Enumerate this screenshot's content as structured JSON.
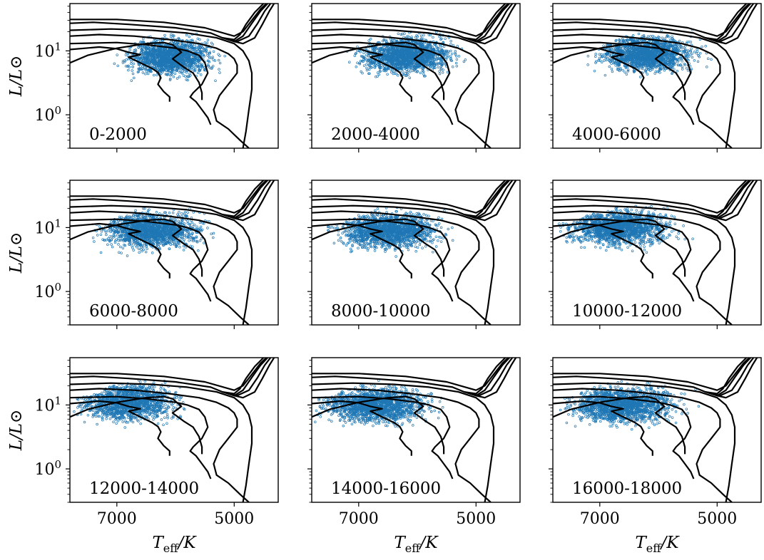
{
  "figure": {
    "ylabel": "L/L⊙",
    "xlabel": "T_eff/K"
  },
  "chart_data": {
    "type": "scatter",
    "layout": {
      "rows": 3,
      "cols": 3,
      "sharex": true,
      "sharey": true
    },
    "x_axis": {
      "label": "T_eff/K",
      "lim": [
        7800,
        4250
      ],
      "ticks": [
        7000,
        5000
      ],
      "tick_labels": [
        "7000",
        "5000"
      ]
    },
    "y_axis": {
      "label": "L/L⊙",
      "scale": "log",
      "lim": [
        0.3,
        55
      ],
      "ticks": [
        1,
        10
      ],
      "tick_labels": [
        "10^0",
        "10^1"
      ]
    },
    "grid": false,
    "point_color": "#1f77b4",
    "track_color": "#000000",
    "isochrone_tracks": [
      [
        [
          7800,
          6.5
        ],
        [
          7500,
          8.5
        ],
        [
          7000,
          11
        ],
        [
          6500,
          13
        ],
        [
          6200,
          13.5
        ],
        [
          6050,
          12.5
        ],
        [
          5900,
          9.5
        ],
        [
          6050,
          7.5
        ],
        [
          5850,
          5.5
        ],
        [
          5700,
          4.5
        ],
        [
          5600,
          3.2
        ],
        [
          5550,
          2.2
        ],
        [
          5550,
          1.7
        ]
      ],
      [
        [
          7800,
          10.5
        ],
        [
          7300,
          11.5
        ],
        [
          7000,
          10.8
        ],
        [
          6800,
          9.5
        ],
        [
          6600,
          8.7
        ],
        [
          6800,
          8.0
        ],
        [
          6600,
          6.5
        ],
        [
          6400,
          5.3
        ],
        [
          6300,
          4.6
        ],
        [
          6250,
          3.8
        ],
        [
          6300,
          3.0
        ],
        [
          6200,
          2.3
        ],
        [
          6100,
          1.9
        ],
        [
          6100,
          1.6
        ]
      ],
      [
        [
          7800,
          13
        ],
        [
          7000,
          13.5
        ],
        [
          6500,
          12.5
        ],
        [
          6000,
          11
        ],
        [
          5800,
          10
        ],
        [
          5600,
          8.5
        ],
        [
          5500,
          6.5
        ],
        [
          5450,
          4.5
        ],
        [
          5550,
          3.0
        ],
        [
          5700,
          2.2
        ],
        [
          5750,
          1.9
        ],
        [
          5650,
          1.6
        ],
        [
          5550,
          1.2
        ],
        [
          5450,
          0.9
        ],
        [
          5400,
          0.7
        ]
      ],
      [
        [
          7800,
          17
        ],
        [
          7300,
          18
        ],
        [
          6700,
          17
        ],
        [
          6100,
          15
        ],
        [
          5600,
          13
        ],
        [
          5300,
          11
        ],
        [
          5100,
          9
        ],
        [
          5000,
          7.5
        ],
        [
          4950,
          6
        ],
        [
          4950,
          4.5
        ],
        [
          5100,
          3
        ],
        [
          5250,
          2.0
        ],
        [
          5350,
          1.2
        ],
        [
          5300,
          0.8
        ],
        [
          5100,
          0.6
        ],
        [
          4900,
          0.4
        ],
        [
          4750,
          0.3
        ]
      ],
      [
        [
          7800,
          21
        ],
        [
          7100,
          22
        ],
        [
          6400,
          21
        ],
        [
          5800,
          19
        ],
        [
          5300,
          16
        ],
        [
          5000,
          13
        ],
        [
          4850,
          10
        ],
        [
          4750,
          7
        ],
        [
          4700,
          4.5
        ],
        [
          4700,
          2.5
        ],
        [
          4750,
          1.2
        ],
        [
          4800,
          0.55
        ],
        [
          4850,
          0.3
        ]
      ],
      [
        [
          7800,
          27
        ],
        [
          7400,
          28
        ],
        [
          6800,
          26
        ],
        [
          6000,
          23
        ],
        [
          5400,
          19
        ],
        [
          5200,
          16
        ],
        [
          5000,
          15
        ],
        [
          4900,
          18
        ],
        [
          4800,
          26
        ],
        [
          4650,
          40
        ],
        [
          4500,
          55
        ]
      ],
      [
        [
          7800,
          31
        ],
        [
          7000,
          31
        ],
        [
          6200,
          28
        ],
        [
          5500,
          23
        ],
        [
          5000,
          17
        ],
        [
          4850,
          20
        ],
        [
          4700,
          30
        ],
        [
          4550,
          45
        ],
        [
          4450,
          55
        ]
      ],
      [
        [
          5200,
          16
        ],
        [
          5000,
          14
        ],
        [
          4850,
          17
        ],
        [
          4700,
          27
        ],
        [
          4550,
          42
        ],
        [
          4430,
          55
        ]
      ],
      [
        [
          5100,
          15
        ],
        [
          4950,
          14
        ],
        [
          4750,
          17
        ],
        [
          4600,
          27
        ],
        [
          4480,
          42
        ],
        [
          4380,
          55
        ]
      ],
      [
        [
          5000,
          14
        ],
        [
          4850,
          13
        ],
        [
          4650,
          16
        ],
        [
          4520,
          26
        ],
        [
          4400,
          42
        ],
        [
          4320,
          55
        ]
      ]
    ],
    "panels": [
      {
        "label": "0-2000",
        "cloud": {
          "tmin": 4400,
          "tmax": 7200,
          "lmin": 2.0,
          "lmax": 22,
          "cx": 6100,
          "cl": 8.0,
          "n": 1600
        }
      },
      {
        "label": "2000-4000",
        "cloud": {
          "tmin": 4300,
          "tmax": 7400,
          "lmin": 2.0,
          "lmax": 24,
          "cx": 6200,
          "cl": 8.5,
          "n": 1700
        }
      },
      {
        "label": "4000-6000",
        "cloud": {
          "tmin": 4300,
          "tmax": 7300,
          "lmin": 1.8,
          "lmax": 24,
          "cx": 6200,
          "cl": 9.0,
          "n": 1700
        }
      },
      {
        "label": "6000-8000",
        "cloud": {
          "tmin": 4300,
          "tmax": 7500,
          "lmin": 1.5,
          "lmax": 25,
          "cx": 6400,
          "cl": 9.0,
          "n": 1700
        }
      },
      {
        "label": "8000-10000",
        "cloud": {
          "tmin": 4400,
          "tmax": 7600,
          "lmin": 1.5,
          "lmax": 25,
          "cx": 6500,
          "cl": 9.0,
          "n": 1700
        }
      },
      {
        "label": "10000-12000",
        "cloud": {
          "tmin": 4300,
          "tmax": 7700,
          "lmin": 1.5,
          "lmax": 28,
          "cx": 6700,
          "cl": 10.0,
          "n": 1700
        }
      },
      {
        "label": "12000-14000",
        "cloud": {
          "tmin": 4500,
          "tmax": 7750,
          "lmin": 1.8,
          "lmax": 30,
          "cx": 6800,
          "cl": 11.0,
          "n": 1500
        }
      },
      {
        "label": "14000-16000",
        "cloud": {
          "tmin": 4400,
          "tmax": 7750,
          "lmin": 1.5,
          "lmax": 30,
          "cx": 6700,
          "cl": 10.0,
          "n": 1700
        }
      },
      {
        "label": "16000-18000",
        "cloud": {
          "tmin": 4300,
          "tmax": 7750,
          "lmin": 1.3,
          "lmax": 30,
          "cx": 6600,
          "cl": 10.0,
          "n": 1700
        }
      }
    ]
  }
}
